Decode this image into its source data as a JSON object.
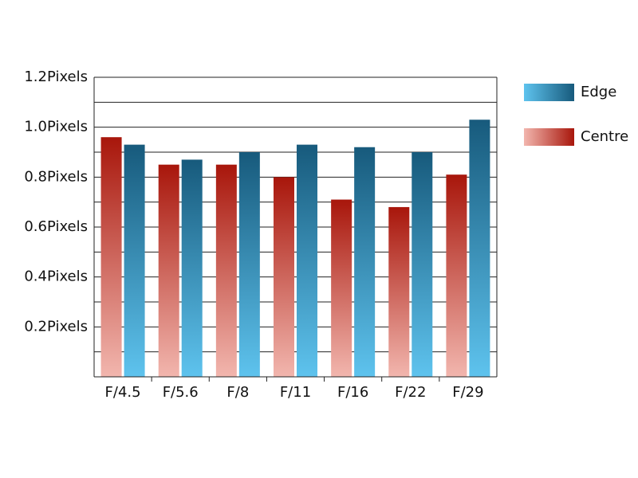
{
  "chart_data": {
    "type": "bar",
    "categories": [
      "F/4.5",
      "F/5.6",
      "F/8",
      "F/11",
      "F/16",
      "F/22",
      "F/29"
    ],
    "series": [
      {
        "name": "Centre",
        "gradient": [
          "#a8160b",
          "#f2b6ae"
        ],
        "values": [
          0.96,
          0.85,
          0.85,
          0.8,
          0.71,
          0.68,
          0.81
        ]
      },
      {
        "name": "Edge",
        "gradient": [
          "#175a7c",
          "#5ec3ee"
        ],
        "values": [
          0.93,
          0.87,
          0.9,
          0.93,
          0.92,
          0.9,
          1.03
        ]
      }
    ],
    "legend_order": [
      1,
      0
    ],
    "legend_position": "right",
    "ylim": [
      0,
      1.2
    ],
    "yticks": [
      {
        "value": 0.2,
        "label": "0.2Pixels"
      },
      {
        "value": 0.4,
        "label": "0.4Pixels"
      },
      {
        "value": 0.6,
        "label": "0.6Pixels"
      },
      {
        "value": 0.8,
        "label": "0.8Pixels"
      },
      {
        "value": 1.0,
        "label": "1.0Pixels"
      },
      {
        "value": 1.2,
        "label": "1.2Pixels"
      }
    ],
    "minor_yticks": [
      0.1,
      0.3,
      0.5,
      0.7,
      0.9,
      1.1
    ],
    "grid": true
  }
}
